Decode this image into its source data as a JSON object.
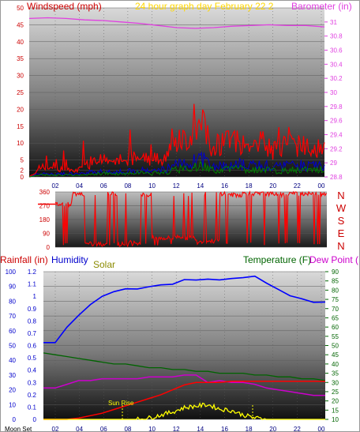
{
  "colors": {
    "wind": "#ff0000",
    "wind_gust": "#ff0000",
    "wind_dark": "#0000cc",
    "wind_green": "#008000",
    "barometer": "#e040e0",
    "direction": "#ff0000",
    "humidity": "#0000ff",
    "temperature": "#006400",
    "dewpoint": "#cc00cc",
    "rainfall": "#ff0000",
    "solar": "#ffff00",
    "title": "#ffd700"
  },
  "labels": {
    "windspeed": "Windspeed (mph)",
    "title": "24 hour graph day February 22 2",
    "barometer": "Barometer (in)",
    "rainfall": "Rainfall (in)",
    "humidity": "Humidity",
    "solar": "Solar",
    "temperature": "Temperature (F)",
    "dewpoint": "Dew Point (",
    "compass": [
      "N",
      "W",
      "S",
      "E",
      "N"
    ],
    "sunrise": "Sun Rise",
    "moonset": "Moon Set"
  },
  "chart_data": [
    {
      "type": "line",
      "x_ticks": [
        "02",
        "04",
        "06",
        "08",
        "10",
        "12",
        "14",
        "16",
        "18",
        "20",
        "22",
        "00"
      ],
      "y_left": {
        "label": "Windspeed (mph)",
        "ticks": [
          0,
          2,
          5,
          10,
          15,
          20,
          25,
          30,
          35,
          40,
          45,
          50
        ]
      },
      "y_right": {
        "label": "Barometer (in)",
        "ticks": [
          28.8,
          29,
          29.2,
          29.4,
          29.6,
          29.8,
          30,
          30.2,
          30.4,
          30.6,
          30.8,
          31
        ]
      },
      "series": [
        {
          "name": "Barometer (in)",
          "axis": "right",
          "values": [
            31.05,
            31.06,
            31.05,
            31.03,
            31.02,
            31.0,
            30.98,
            30.95,
            30.92,
            30.91,
            30.92,
            30.94,
            30.95,
            30.96,
            30.95,
            30.95,
            30.93
          ]
        },
        {
          "name": "Windspeed (mph)",
          "axis": "left",
          "values": [
            0,
            3,
            2,
            3,
            2,
            4,
            5,
            4,
            5,
            6,
            5,
            6,
            10,
            12,
            15,
            9,
            10,
            11,
            9,
            10,
            8,
            9,
            10,
            9,
            10
          ]
        }
      ]
    },
    {
      "type": "line",
      "x_ticks": [
        "02",
        "04",
        "06",
        "08",
        "10",
        "12",
        "14",
        "16",
        "18",
        "20",
        "22",
        "00"
      ],
      "y_left": {
        "ticks": [
          0,
          90,
          180,
          270,
          360
        ]
      },
      "y_right": {
        "ticks": [
          "N",
          "W",
          "S",
          "E",
          "N"
        ]
      },
      "series": [
        {
          "name": "Wind direction",
          "values": [
            280,
            280,
            350,
            20,
            20,
            350,
            20,
            30,
            340,
            60,
            60,
            70,
            60,
            40,
            40,
            350,
            340,
            350,
            350,
            350,
            340,
            350,
            350,
            350,
            340
          ]
        }
      ]
    },
    {
      "type": "line",
      "x_ticks": [
        "Moon Set",
        "02",
        "04",
        "06",
        "08",
        "10",
        "12",
        "14",
        "16",
        "18",
        "20",
        "22",
        "00"
      ],
      "y_left": {
        "label": "Rainfall (in)",
        "ticks": [
          0,
          10,
          20,
          30,
          40,
          50,
          60,
          70,
          80,
          90,
          100
        ]
      },
      "y_left2": {
        "ticks": [
          0,
          0.1,
          0.2,
          0.3,
          0.4,
          0.5,
          0.6,
          0.7,
          0.8,
          0.9,
          1,
          1.1,
          1.2
        ]
      },
      "y_right": {
        "label": "Temperature (F)",
        "ticks": [
          10,
          15,
          20,
          25,
          30,
          35,
          40,
          45,
          50,
          55,
          60,
          65,
          70,
          75,
          80,
          85,
          90
        ]
      },
      "series": [
        {
          "name": "Humidity",
          "axis": "left",
          "values": [
            52,
            52,
            62,
            70,
            78,
            83,
            86,
            88,
            89,
            90,
            91,
            92,
            94,
            95,
            95,
            94,
            95,
            96,
            97,
            93,
            88,
            84,
            82,
            80,
            79
          ]
        },
        {
          "name": "Temperature (F)",
          "axis": "right",
          "values": [
            46,
            45,
            44,
            43,
            42,
            41,
            40,
            40,
            39,
            38,
            38,
            37,
            37,
            36,
            36,
            35,
            35,
            35,
            34,
            34,
            33,
            33,
            32,
            32,
            31
          ]
        },
        {
          "name": "Dew Point (",
          "axis": "right",
          "values": [
            27,
            27,
            29,
            31,
            31,
            32,
            32,
            32,
            32,
            33,
            33,
            33,
            34,
            34,
            30,
            31,
            30,
            30,
            29,
            27,
            26,
            25,
            24,
            23,
            23
          ]
        },
        {
          "name": "Rainfall (in)",
          "axis": "left2",
          "values": [
            0,
            0,
            0,
            0.01,
            0.03,
            0.05,
            0.08,
            0.11,
            0.14,
            0.17,
            0.2,
            0.24,
            0.28,
            0.3,
            0.3,
            0.3,
            0.31,
            0.31,
            0.31,
            0.31,
            0.31,
            0.31,
            0.31,
            0.31,
            0.31
          ]
        },
        {
          "name": "Solar",
          "axis": "left",
          "values": [
            0,
            0,
            0,
            0,
            0,
            0,
            0,
            0,
            0,
            1,
            3,
            5,
            8,
            9,
            10,
            7,
            6,
            3,
            1,
            0,
            0,
            0,
            0,
            0,
            0
          ]
        }
      ]
    }
  ]
}
